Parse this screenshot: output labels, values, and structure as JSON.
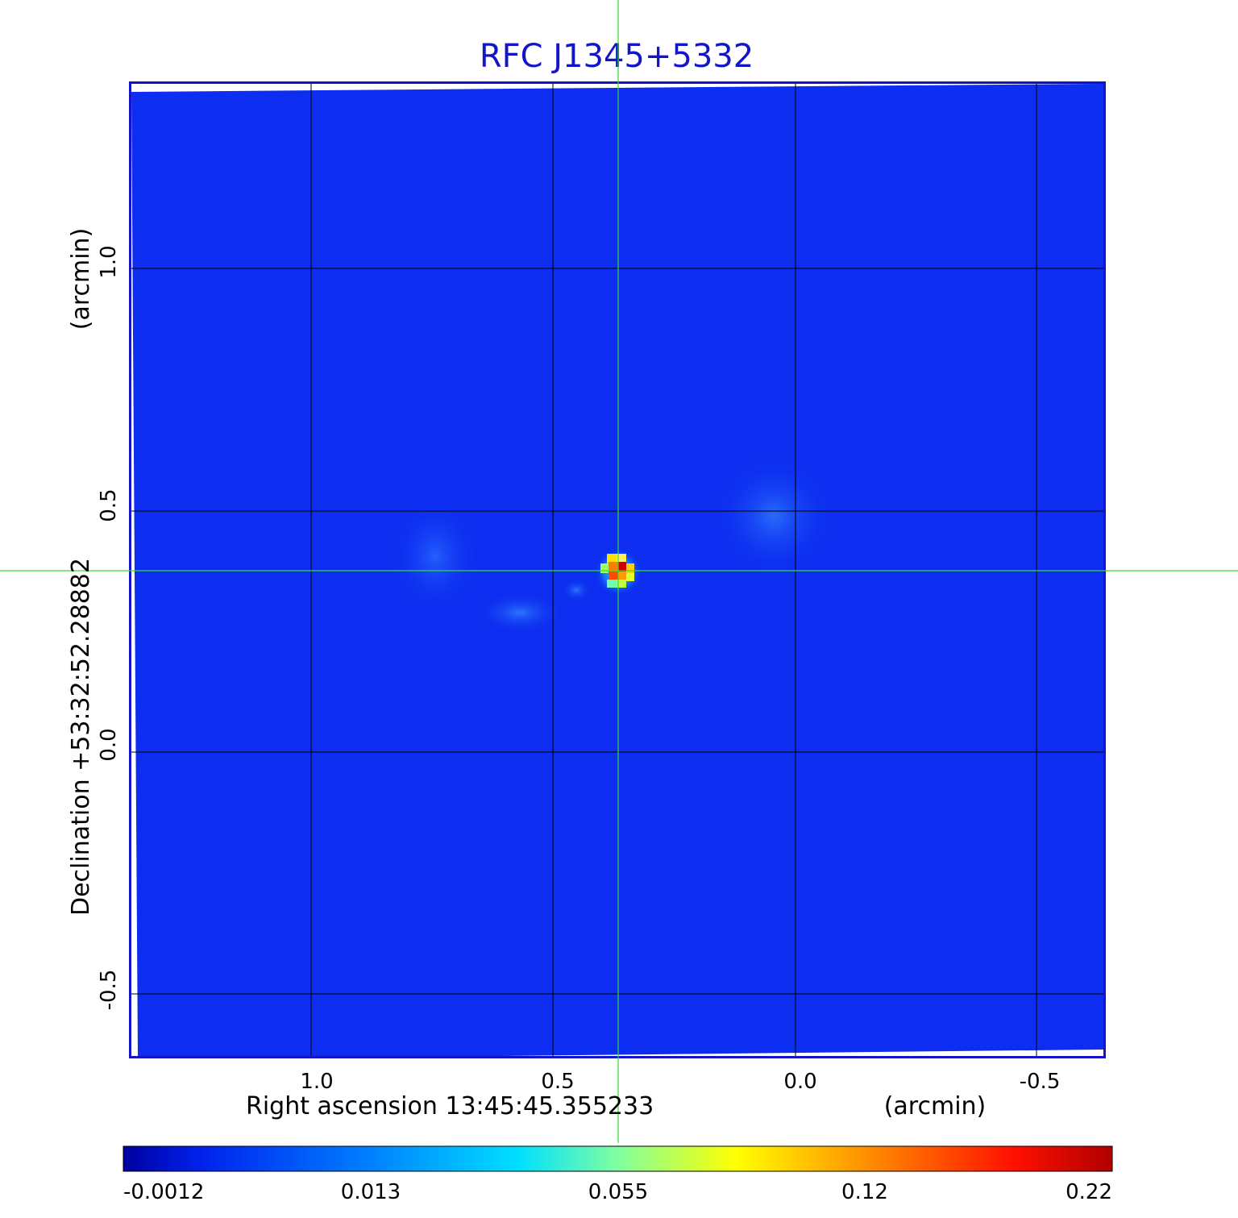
{
  "title": "RFC J1345+5332",
  "x_axis": {
    "label": "Right ascension  13:45:45.355233",
    "unit": "(arcmin)",
    "ticks": [
      "1.0",
      "0.5",
      "0.0",
      "-0.5"
    ]
  },
  "y_axis": {
    "label": "Declination  +53:32:52.28882",
    "unit": "(arcmin)",
    "ticks": [
      "1.0",
      "0.5",
      "0.0",
      "-0.5"
    ]
  },
  "colorbar": {
    "ticks": [
      "-0.0012",
      "0.013",
      "0.055",
      "0.12",
      "0.22"
    ],
    "colormap": [
      "#0000a0",
      "#0022ee",
      "#0080ff",
      "#00e0ff",
      "#80ffa0",
      "#ffff00",
      "#ff9000",
      "#ff1000",
      "#b00000"
    ]
  },
  "colors": {
    "background_field": "#0d2ef0",
    "frame": "#1414c8",
    "grid": "#000000",
    "crosshair": "#33dd33",
    "title": "#1414c8"
  }
}
